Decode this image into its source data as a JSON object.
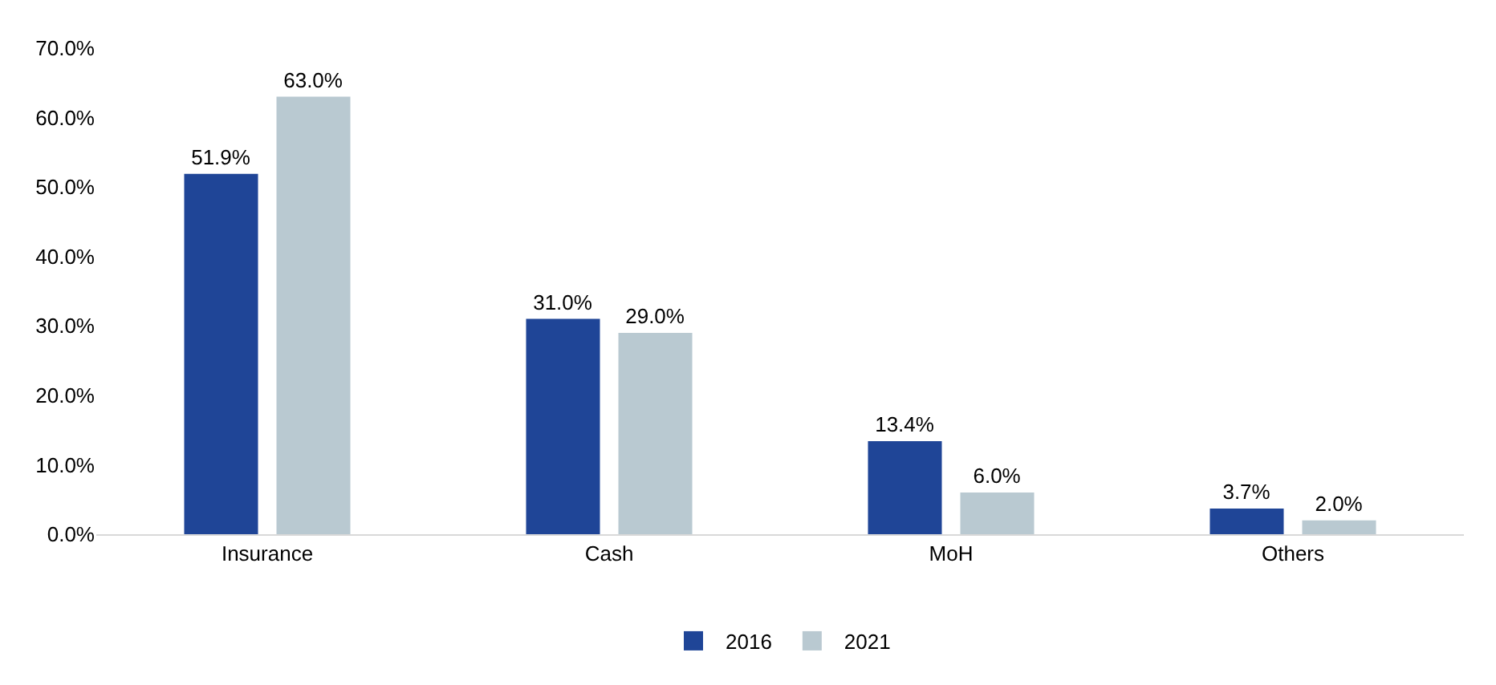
{
  "chart_data": {
    "type": "bar",
    "categories": [
      "Insurance",
      "Cash",
      "MoH",
      "Others"
    ],
    "series": [
      {
        "name": "2016",
        "color": "#1f4597",
        "values": [
          51.9,
          31.0,
          13.4,
          3.7
        ],
        "value_labels": [
          "51.9%",
          "31.0%",
          "13.4%",
          "3.7%"
        ]
      },
      {
        "name": "2021",
        "color": "#b9c9d1",
        "values": [
          63.0,
          29.0,
          6.0,
          2.0
        ],
        "value_labels": [
          "63.0%",
          "29.0%",
          "6.0%",
          "2.0%"
        ]
      }
    ],
    "ylim": [
      0,
      70
    ],
    "yticks": [
      {
        "value": 0,
        "label": "0.0%"
      },
      {
        "value": 10,
        "label": "10.0%"
      },
      {
        "value": 20,
        "label": "20.0%"
      },
      {
        "value": 30,
        "label": "30.0%"
      },
      {
        "value": 40,
        "label": "40.0%"
      },
      {
        "value": 50,
        "label": "50.0%"
      },
      {
        "value": 60,
        "label": "60.0%"
      },
      {
        "value": 70,
        "label": "70.0%"
      }
    ],
    "grid": false,
    "legend": "bottom"
  }
}
